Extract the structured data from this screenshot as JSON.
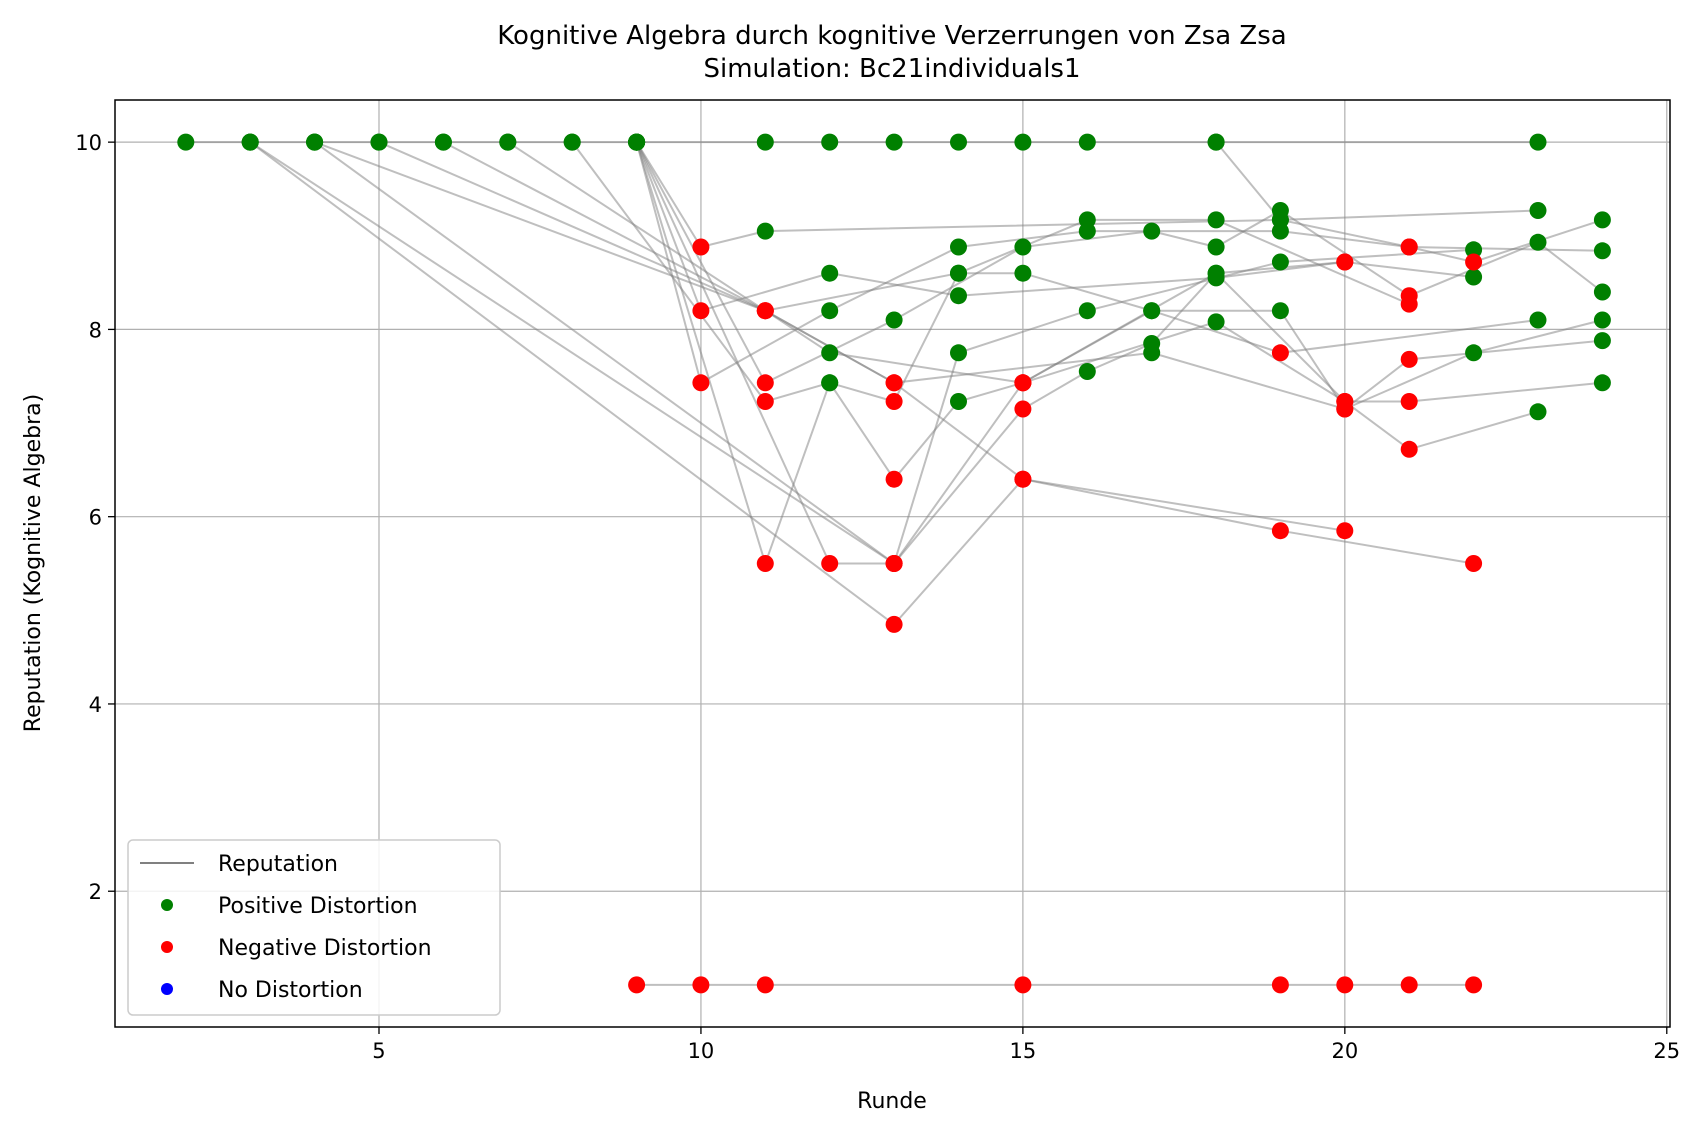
{
  "chart_data": {
    "type": "scatter",
    "title": "Kognitive Algebra durch kognitive Verzerrungen von Zsa Zsa",
    "subtitle": "Simulation: Bc21individuals1",
    "xlabel": "Runde",
    "ylabel": "Reputation (Kognitive Algebra)",
    "xlim": [
      0.9,
      25.05
    ],
    "ylim": [
      0.55,
      10.45
    ],
    "xticks": [
      5,
      10,
      15,
      20,
      25
    ],
    "yticks": [
      2,
      4,
      6,
      8,
      10
    ],
    "grid": true,
    "legend_position": "lower-left",
    "legend": [
      {
        "label": "Reputation",
        "kind": "line",
        "color": "#808080"
      },
      {
        "label": "Positive Distortion",
        "kind": "dot",
        "color": "#008000"
      },
      {
        "label": "Negative Distortion",
        "kind": "dot",
        "color": "#ff0000"
      },
      {
        "label": "No Distortion",
        "kind": "dot",
        "color": "#0000ff"
      }
    ],
    "colors": {
      "positive": "#008000",
      "negative": "#ff0000",
      "none": "#0000ff",
      "line": "#808080"
    },
    "series": [
      {
        "points": [
          [
            2,
            10
          ],
          [
            3,
            10
          ],
          [
            4,
            10
          ],
          [
            5,
            10
          ],
          [
            6,
            10
          ],
          [
            7,
            10
          ],
          [
            8,
            10
          ],
          [
            9,
            10
          ],
          [
            11,
            10
          ],
          [
            12,
            10
          ],
          [
            13,
            10
          ],
          [
            14,
            10
          ],
          [
            15,
            10
          ],
          [
            16,
            10
          ],
          [
            18,
            10
          ],
          [
            23,
            10
          ]
        ],
        "distortion": [
          "pos",
          "pos",
          "pos",
          "pos",
          "pos",
          "pos",
          "pos",
          "pos",
          "pos",
          "pos",
          "pos",
          "pos",
          "pos",
          "pos",
          "pos",
          "pos"
        ]
      },
      {
        "points": [
          [
            9,
            1
          ],
          [
            10,
            1
          ],
          [
            11,
            1
          ],
          [
            15,
            1
          ],
          [
            19,
            1
          ],
          [
            20,
            1
          ],
          [
            21,
            1
          ],
          [
            22,
            1
          ]
        ],
        "distortion": [
          "neg",
          "neg",
          "neg",
          "neg",
          "neg",
          "neg",
          "neg",
          "neg"
        ]
      },
      {
        "points": [
          [
            3,
            10
          ],
          [
            13,
            5.5
          ],
          [
            14,
            7.75
          ],
          [
            16,
            8.2
          ],
          [
            19,
            8.72
          ],
          [
            22,
            8.85
          ]
        ],
        "distortion": [
          "pos",
          "neg",
          "pos",
          "pos",
          "pos",
          "pos"
        ]
      },
      {
        "points": [
          [
            3,
            10
          ],
          [
            13,
            4.85
          ],
          [
            15,
            6.4
          ],
          [
            19,
            5.85
          ],
          [
            22,
            5.5
          ]
        ],
        "distortion": [
          "pos",
          "neg",
          "neg",
          "neg",
          "neg"
        ]
      },
      {
        "points": [
          [
            4,
            10
          ],
          [
            13,
            5.5
          ],
          [
            15,
            7.43
          ],
          [
            17,
            8.2
          ],
          [
            19,
            7.75
          ],
          [
            23,
            8.1
          ]
        ],
        "distortion": [
          "pos",
          "neg",
          "neg",
          "pos",
          "neg",
          "pos"
        ]
      },
      {
        "points": [
          [
            4,
            10
          ],
          [
            11,
            8.2
          ],
          [
            14,
            8.6
          ],
          [
            16,
            9.17
          ],
          [
            18,
            9.17
          ],
          [
            21,
            8.27
          ]
        ],
        "distortion": [
          "pos",
          "neg",
          "pos",
          "pos",
          "pos",
          "neg"
        ]
      },
      {
        "points": [
          [
            5,
            10
          ],
          [
            11,
            8.2
          ],
          [
            13,
            7.43
          ],
          [
            15,
            6.4
          ],
          [
            20,
            5.85
          ]
        ],
        "distortion": [
          "pos",
          "neg",
          "neg",
          "neg",
          "neg"
        ]
      },
      {
        "points": [
          [
            6,
            10
          ],
          [
            11,
            8.2
          ],
          [
            13,
            7.43
          ],
          [
            17,
            7.75
          ],
          [
            20,
            7.15
          ],
          [
            22,
            7.75
          ],
          [
            24,
            8.1
          ]
        ],
        "distortion": [
          "pos",
          "neg",
          "neg",
          "pos",
          "neg",
          "pos",
          "pos"
        ]
      },
      {
        "points": [
          [
            7,
            10
          ],
          [
            12,
            7.75
          ],
          [
            15,
            7.43
          ],
          [
            18,
            8.6
          ],
          [
            20,
            8.72
          ]
        ],
        "distortion": [
          "pos",
          "pos",
          "neg",
          "pos",
          "neg"
        ]
      },
      {
        "points": [
          [
            8,
            10
          ],
          [
            11,
            7.23
          ],
          [
            12,
            7.43
          ],
          [
            13,
            6.4
          ],
          [
            14,
            7.23
          ],
          [
            15,
            7.43
          ],
          [
            18,
            8.08
          ],
          [
            20,
            7.23
          ],
          [
            21,
            6.72
          ],
          [
            23,
            7.12
          ]
        ],
        "distortion": [
          "pos",
          "neg",
          "pos",
          "neg",
          "pos",
          "neg",
          "pos",
          "neg",
          "neg",
          "pos"
        ]
      },
      {
        "points": [
          [
            9,
            10
          ],
          [
            10,
            8.88
          ],
          [
            11,
            9.05
          ],
          [
            19,
            9.17
          ],
          [
            23,
            9.27
          ]
        ],
        "distortion": [
          "pos",
          "neg",
          "pos",
          "pos",
          "pos"
        ]
      },
      {
        "points": [
          [
            9,
            10
          ],
          [
            10,
            8.2
          ],
          [
            12,
            8.6
          ],
          [
            14,
            8.36
          ],
          [
            18,
            8.55
          ],
          [
            20,
            8.72
          ],
          [
            22,
            8.56
          ]
        ],
        "distortion": [
          "pos",
          "neg",
          "pos",
          "pos",
          "pos",
          "neg",
          "pos"
        ]
      },
      {
        "points": [
          [
            9,
            10
          ],
          [
            10,
            7.43
          ],
          [
            12,
            8.2
          ],
          [
            14,
            8.88
          ],
          [
            16,
            9.05
          ],
          [
            19,
            9.05
          ],
          [
            21,
            8.88
          ],
          [
            24,
            8.84
          ]
        ],
        "distortion": [
          "pos",
          "neg",
          "pos",
          "pos",
          "pos",
          "pos",
          "neg",
          "pos"
        ]
      },
      {
        "points": [
          [
            9,
            10
          ],
          [
            11,
            7.43
          ],
          [
            13,
            8.1
          ],
          [
            15,
            8.88
          ],
          [
            17,
            9.05
          ],
          [
            18,
            8.88
          ],
          [
            19,
            9.27
          ],
          [
            21,
            8.36
          ],
          [
            23,
            8.93
          ],
          [
            24,
            8.4
          ]
        ],
        "distortion": [
          "pos",
          "neg",
          "pos",
          "pos",
          "pos",
          "pos",
          "pos",
          "neg",
          "pos",
          "pos"
        ]
      },
      {
        "points": [
          [
            9,
            10
          ],
          [
            11,
            5.5
          ],
          [
            12,
            7.43
          ],
          [
            13,
            7.23
          ],
          [
            14,
            8.6
          ],
          [
            15,
            8.6
          ],
          [
            17,
            8.2
          ],
          [
            19,
            8.2
          ],
          [
            20,
            7.15
          ],
          [
            21,
            7.68
          ],
          [
            24,
            7.88
          ]
        ],
        "distortion": [
          "pos",
          "neg",
          "pos",
          "neg",
          "pos",
          "pos",
          "pos",
          "pos",
          "neg",
          "neg",
          "pos"
        ]
      },
      {
        "points": [
          [
            9,
            10
          ],
          [
            12,
            5.5
          ],
          [
            13,
            5.5
          ],
          [
            15,
            7.15
          ],
          [
            16,
            7.55
          ],
          [
            17,
            7.85
          ],
          [
            18,
            8.6
          ],
          [
            20,
            7.23
          ],
          [
            21,
            7.23
          ],
          [
            24,
            7.43
          ]
        ],
        "distortion": [
          "pos",
          "neg",
          "neg",
          "neg",
          "pos",
          "pos",
          "pos",
          "neg",
          "neg",
          "pos"
        ]
      },
      {
        "points": [
          [
            18,
            10
          ],
          [
            19,
            9.17
          ],
          [
            21,
            8.88
          ],
          [
            22,
            8.72
          ],
          [
            24,
            9.17
          ]
        ],
        "distortion": [
          "pos",
          "pos",
          "neg",
          "neg",
          "pos"
        ]
      }
    ]
  }
}
